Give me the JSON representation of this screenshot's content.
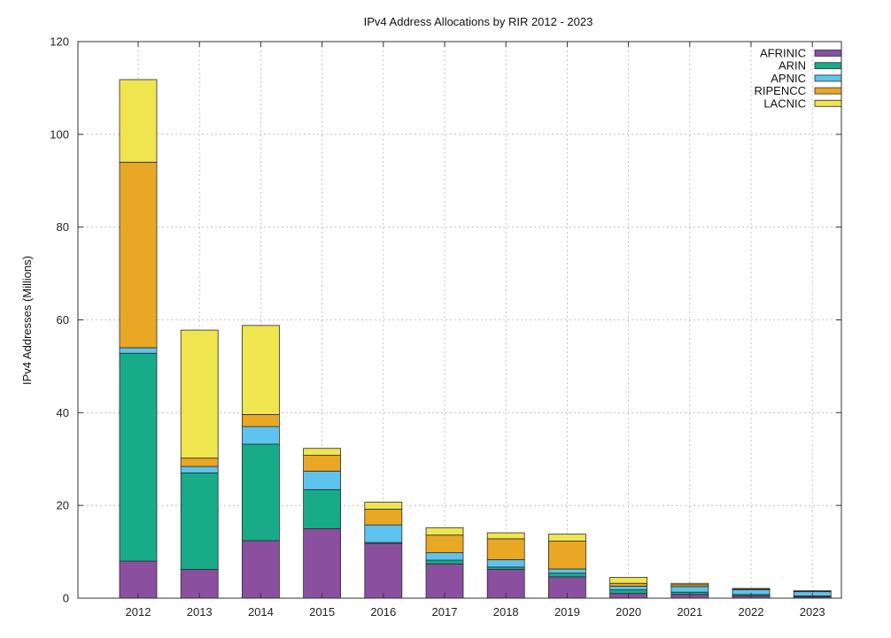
{
  "chart_data": {
    "type": "bar",
    "stacked": true,
    "title": "IPv4 Address Allocations by RIR 2012 - 2023",
    "xlabel": "",
    "ylabel": "IPv4 Addresses (Millions)",
    "ylim": [
      0,
      120
    ],
    "yticks": [
      0,
      20,
      40,
      60,
      80,
      100,
      120
    ],
    "grid": true,
    "legend_position": "top-right",
    "categories": [
      "2012",
      "2013",
      "2014",
      "2015",
      "2016",
      "2017",
      "2018",
      "2019",
      "2020",
      "2021",
      "2022",
      "2023"
    ],
    "series": [
      {
        "name": "AFRINIC",
        "color": "#8b4fa0",
        "values": [
          8.0,
          6.2,
          12.4,
          15.0,
          11.8,
          7.4,
          6.2,
          4.6,
          1.0,
          0.8,
          0.5,
          0.3
        ]
      },
      {
        "name": "ARIN",
        "color": "#18ab88",
        "values": [
          44.8,
          20.8,
          20.8,
          8.4,
          0.2,
          0.8,
          0.5,
          0.8,
          0.8,
          0.5,
          0.3,
          0.2
        ]
      },
      {
        "name": "APNIC",
        "color": "#5ec3ee",
        "values": [
          1.2,
          1.4,
          3.8,
          4.0,
          3.8,
          1.6,
          1.6,
          0.9,
          0.8,
          1.2,
          1.0,
          0.9
        ]
      },
      {
        "name": "RIPENCC",
        "color": "#e8a825",
        "values": [
          40.0,
          1.8,
          2.6,
          3.4,
          3.4,
          3.8,
          4.5,
          6.0,
          0.6,
          0.4,
          0.2,
          0.1
        ]
      },
      {
        "name": "LACNIC",
        "color": "#eee54f",
        "values": [
          17.8,
          27.6,
          19.2,
          1.5,
          1.5,
          1.6,
          1.3,
          1.5,
          1.3,
          0.3,
          0.1,
          0.1
        ]
      }
    ]
  }
}
